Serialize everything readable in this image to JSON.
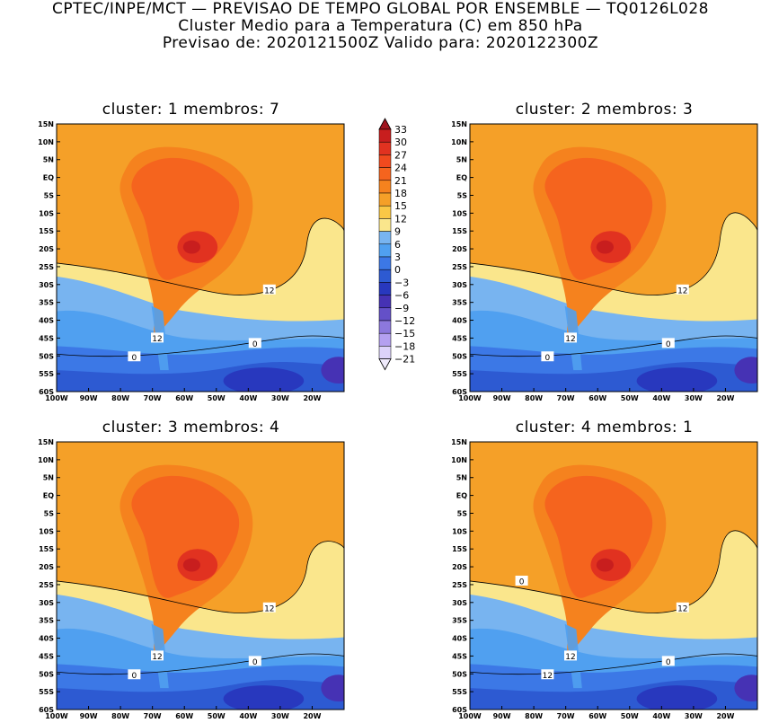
{
  "header": {
    "line1": "CPTEC/INPE/MCT — PREVISAO DE TEMPO GLOBAL POR ENSEMBLE — TQ0126L028",
    "line2": "Cluster Medio para a Temperatura (C) em 850 hPa",
    "line3": "Previsao de: 2020121500Z   Valido para: 2020122300Z"
  },
  "panels": [
    {
      "title": "cluster: 1   membros: 7",
      "contours": [
        "12",
        "12",
        "0",
        "0"
      ]
    },
    {
      "title": "cluster: 2   membros: 3",
      "contours": [
        "12",
        "12",
        "0",
        "0"
      ]
    },
    {
      "title": "cluster: 3   membros: 4",
      "contours": [
        "12",
        "12",
        "0",
        "0"
      ]
    },
    {
      "title": "cluster: 4   membros: 1",
      "contours": [
        "12",
        "12",
        "12",
        "0",
        "0"
      ]
    }
  ],
  "axes": {
    "lat_ticks": [
      "15N",
      "10N",
      "5N",
      "EQ",
      "5S",
      "10S",
      "15S",
      "20S",
      "25S",
      "30S",
      "35S",
      "40S",
      "45S",
      "50S",
      "55S",
      "60S"
    ],
    "lon_ticks": [
      "100W",
      "90W",
      "80W",
      "70W",
      "60W",
      "50W",
      "40W",
      "30W",
      "20W"
    ]
  },
  "colorbar": {
    "levels": [
      "33",
      "30",
      "27",
      "24",
      "21",
      "18",
      "15",
      "12",
      "9",
      "6",
      "3",
      "0",
      "-3",
      "-6",
      "-9",
      "-12",
      "-15",
      "-18",
      "-21"
    ],
    "colors": [
      "#a0141e",
      "#c81e1e",
      "#e13220",
      "#f04a1e",
      "#f5641e",
      "#f5821e",
      "#f5a028",
      "#fac846",
      "#fae68c",
      "#78b4f0",
      "#50a0f0",
      "#3c78e6",
      "#2d5ad2",
      "#2838be",
      "#4632b4",
      "#6450c8",
      "#8c78dc",
      "#b4a0f0",
      "#dcd2fa",
      "#f0ebfc"
    ]
  }
}
